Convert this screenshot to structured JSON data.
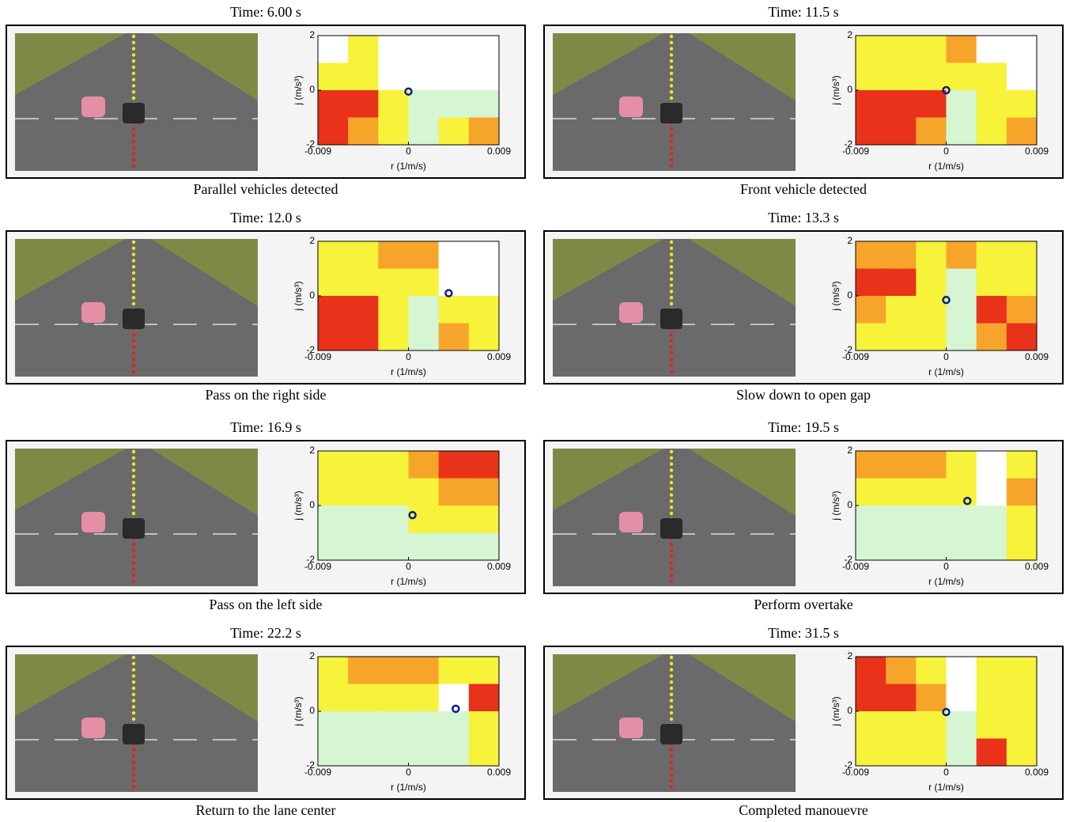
{
  "chart_data": [
    {
      "type": "heatmap",
      "title": "Time: 6.00 s",
      "caption": "Parallel vehicles detected",
      "xlabel": "r (1/m/s)",
      "ylabel": "j (m/s³)",
      "xlim": [
        -0.009,
        0.009
      ],
      "ylim": [
        -2,
        2
      ],
      "xticks": [
        -0.009,
        0,
        0.009
      ],
      "yticks": [
        -2,
        0,
        2
      ],
      "colors": [
        "#d6f5d2",
        "#ffffff",
        "#f7f23a",
        "#f7a52a",
        "#e8321a"
      ],
      "z": [
        [
          1,
          2,
          1,
          1,
          1,
          1
        ],
        [
          2,
          2,
          1,
          1,
          1,
          1
        ],
        [
          4,
          4,
          2,
          0,
          0,
          0
        ],
        [
          4,
          3,
          2,
          0,
          2,
          3
        ]
      ],
      "point": {
        "x": 0,
        "y": -0.05
      }
    },
    {
      "type": "heatmap",
      "title": "Time: 11.5 s",
      "caption": "Front vehicle detected",
      "xlabel": "r (1/m/s)",
      "ylabel": "j (m/s³)",
      "xlim": [
        -0.009,
        0.009
      ],
      "ylim": [
        -2,
        2
      ],
      "xticks": [
        -0.009,
        0,
        0.009
      ],
      "yticks": [
        -2,
        0,
        2
      ],
      "colors": [
        "#d6f5d2",
        "#ffffff",
        "#f7f23a",
        "#f7a52a",
        "#e8321a"
      ],
      "z": [
        [
          2,
          2,
          2,
          3,
          1,
          1
        ],
        [
          2,
          2,
          2,
          2,
          2,
          1
        ],
        [
          4,
          4,
          4,
          0,
          2,
          2
        ],
        [
          4,
          4,
          3,
          0,
          2,
          3
        ]
      ],
      "point": {
        "x": 0,
        "y": 0
      }
    },
    {
      "type": "heatmap",
      "title": "Time: 12.0 s",
      "caption": "Pass on the right side",
      "xlabel": "r (1/m/s)",
      "ylabel": "j (m/s³)",
      "xlim": [
        -0.009,
        0.009
      ],
      "ylim": [
        -2,
        2
      ],
      "xticks": [
        -0.009,
        0,
        0.009
      ],
      "yticks": [
        -2,
        0,
        2
      ],
      "colors": [
        "#d6f5d2",
        "#ffffff",
        "#f7f23a",
        "#f7a52a",
        "#e8321a"
      ],
      "z": [
        [
          2,
          2,
          3,
          3,
          1,
          1
        ],
        [
          2,
          2,
          2,
          2,
          1,
          1
        ],
        [
          4,
          4,
          2,
          0,
          2,
          2
        ],
        [
          4,
          4,
          2,
          0,
          3,
          2
        ]
      ],
      "point": {
        "x": 0.004,
        "y": 0.1
      }
    },
    {
      "type": "heatmap",
      "title": "Time: 13.3 s",
      "caption": "Slow down to open gap",
      "xlabel": "r (1/m/s)",
      "ylabel": "j (m/s³)",
      "xlim": [
        -0.009,
        0.009
      ],
      "ylim": [
        -2,
        2
      ],
      "xticks": [
        -0.009,
        0,
        0.009
      ],
      "yticks": [
        -2,
        0,
        2
      ],
      "colors": [
        "#d6f5d2",
        "#ffffff",
        "#f7f23a",
        "#f7a52a",
        "#e8321a"
      ],
      "z": [
        [
          3,
          3,
          2,
          3,
          2,
          2
        ],
        [
          4,
          4,
          2,
          0,
          2,
          2
        ],
        [
          3,
          2,
          2,
          0,
          4,
          3
        ],
        [
          2,
          2,
          2,
          0,
          3,
          4
        ]
      ],
      "point": {
        "x": 0,
        "y": -0.15
      }
    },
    {
      "type": "heatmap",
      "title": "Time: 16.9 s",
      "caption": "Pass on the left side",
      "xlabel": "r (1/m/s)",
      "ylabel": "j (m/s³)",
      "xlim": [
        -0.009,
        0.009
      ],
      "ylim": [
        -2,
        2
      ],
      "xticks": [
        -0.009,
        0,
        0.009
      ],
      "yticks": [
        -2,
        0,
        2
      ],
      "colors": [
        "#d6f5d2",
        "#ffffff",
        "#f7f23a",
        "#f7a52a",
        "#e8321a"
      ],
      "z": [
        [
          2,
          2,
          2,
          3,
          4,
          4
        ],
        [
          2,
          2,
          2,
          2,
          3,
          3
        ],
        [
          0,
          0,
          0,
          2,
          2,
          2
        ],
        [
          0,
          0,
          0,
          0,
          0,
          0
        ]
      ],
      "point": {
        "x": 0.0004,
        "y": -0.35
      }
    },
    {
      "type": "heatmap",
      "title": "Time: 19.5 s",
      "caption": "Perform overtake",
      "xlabel": "r (1/m/s)",
      "ylabel": "j (m/s³)",
      "xlim": [
        -0.009,
        0.009
      ],
      "ylim": [
        -2,
        2
      ],
      "xticks": [
        -0.009,
        0,
        0.009
      ],
      "yticks": [
        -2,
        0,
        2
      ],
      "colors": [
        "#d6f5d2",
        "#ffffff",
        "#f7f23a",
        "#f7a52a",
        "#e8321a"
      ],
      "z": [
        [
          3,
          3,
          3,
          2,
          1,
          2
        ],
        [
          2,
          2,
          2,
          2,
          1,
          3
        ],
        [
          0,
          0,
          0,
          0,
          0,
          2
        ],
        [
          0,
          0,
          0,
          0,
          0,
          2
        ]
      ],
      "point": {
        "x": 0.0021,
        "y": 0.17
      }
    },
    {
      "type": "heatmap",
      "title": "Time: 22.2 s",
      "caption": "Return to the lane center",
      "xlabel": "r (1/m/s)",
      "ylabel": "j (m/s³)",
      "xlim": [
        -0.009,
        0.009
      ],
      "ylim": [
        -2,
        2
      ],
      "xticks": [
        -0.009,
        0,
        0.009
      ],
      "yticks": [
        -2,
        0,
        2
      ],
      "colors": [
        "#d6f5d2",
        "#ffffff",
        "#f7f23a",
        "#f7a52a",
        "#e8321a"
      ],
      "z": [
        [
          2,
          3,
          3,
          3,
          2,
          2
        ],
        [
          2,
          2,
          2,
          2,
          1,
          4
        ],
        [
          0,
          0,
          0,
          0,
          0,
          2
        ],
        [
          0,
          0,
          0,
          0,
          0,
          2
        ]
      ],
      "point": {
        "x": 0.0047,
        "y": 0.09
      }
    },
    {
      "type": "heatmap",
      "title": "Time: 31.5 s",
      "caption": "Completed manouevre",
      "xlabel": "r (1/m/s)",
      "ylabel": "j (m/s³)",
      "xlim": [
        -0.009,
        0.009
      ],
      "ylim": [
        -2,
        2
      ],
      "xticks": [
        -0.009,
        0,
        0.009
      ],
      "yticks": [
        -2,
        0,
        2
      ],
      "colors": [
        "#d6f5d2",
        "#ffffff",
        "#f7f23a",
        "#f7a52a",
        "#e8321a"
      ],
      "z": [
        [
          4,
          3,
          2,
          1,
          2,
          2
        ],
        [
          4,
          4,
          3,
          1,
          2,
          2
        ],
        [
          2,
          2,
          2,
          0,
          2,
          2
        ],
        [
          2,
          2,
          2,
          0,
          4,
          2
        ]
      ],
      "point": {
        "x": 0,
        "y": -0.03
      }
    }
  ]
}
